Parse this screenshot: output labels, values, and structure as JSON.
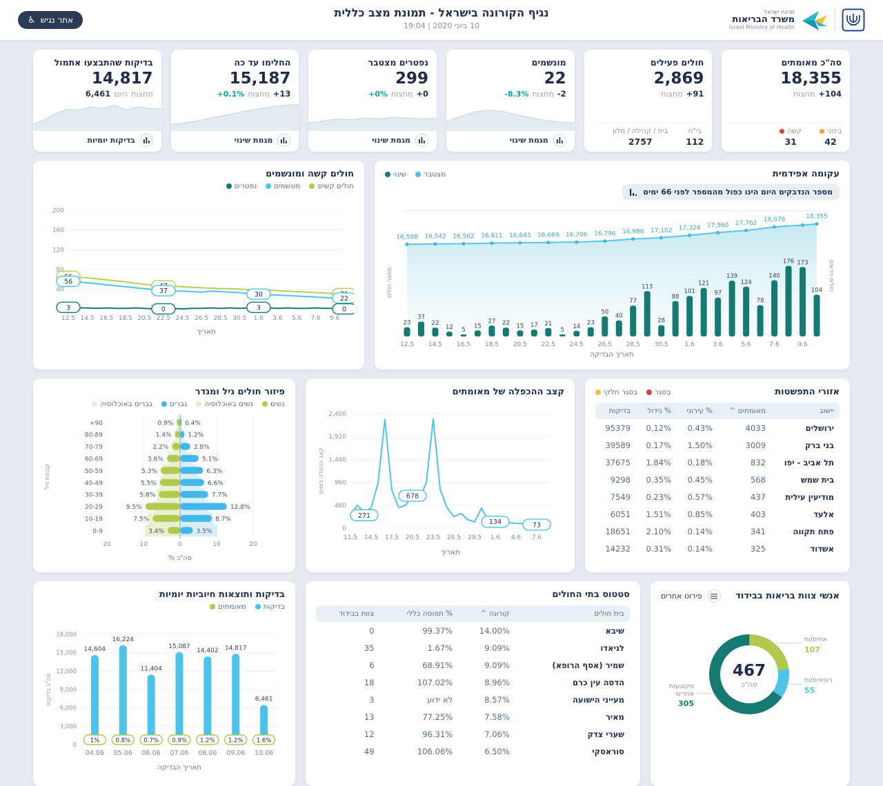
{
  "header": {
    "title": "נגיף הקורונה בישראל - תמונת מצב כללית",
    "datetime": "10 ביוני 2020 | 19:04",
    "accessibility_label": "אתר נגיש",
    "logo": {
      "heb1": "מדינת ישראל",
      "heb2": "משרד הבריאות",
      "eng": "Israel Ministry of Health"
    }
  },
  "colors": {
    "teal_dark": "#177a72",
    "light_blue": "#4ec3ea",
    "green": "#b0c94e",
    "pale_green": "#e7efc8",
    "pale_blue": "#d4ecf8",
    "red": "#e23c3c",
    "orange": "#f0a53e",
    "yellow": "#f0c04a",
    "accent_text": "#0fa3a0"
  },
  "kpis": [
    {
      "title": "סה\"כ מאומתים",
      "value": "18,355",
      "change_line": [
        {
          "t": "מחצות",
          "c": "lbl"
        },
        {
          "t": "+104",
          "c": "num"
        }
      ],
      "footer_stats": [
        {
          "label": "קשה",
          "value": "31",
          "dot": "#e23c3c"
        },
        {
          "label": "בינוני",
          "value": "42",
          "dot": "#f0a53e"
        }
      ]
    },
    {
      "title": "חולים פעילים",
      "value": "2,869",
      "change_line": [
        {
          "t": "מחצות",
          "c": "lbl"
        },
        {
          "t": "+91",
          "c": "num"
        }
      ],
      "footer_stats": [
        {
          "label": "בית / קהילה / מלון",
          "value": "2757"
        },
        {
          "label": "בי\"ח",
          "value": "112"
        }
      ]
    },
    {
      "title": "מונשמים",
      "value": "22",
      "change_line": [
        {
          "t": "-8.3%",
          "c": "pct"
        },
        {
          "t": "מחצות",
          "c": "lbl"
        },
        {
          "t": "-2",
          "c": "num"
        }
      ],
      "button": "מגמת שינוי",
      "spark": [
        12,
        18,
        24,
        26,
        24,
        20,
        16,
        13,
        11,
        10
      ]
    },
    {
      "title": "נפטרים מצטבר",
      "value": "299",
      "change_line": [
        {
          "t": "+0%",
          "c": "pct"
        },
        {
          "t": "מחצות",
          "c": "lbl"
        },
        {
          "t": "+0",
          "c": "num"
        }
      ],
      "button": "מגמת שינוי",
      "spark": [
        10,
        12,
        15,
        14,
        16,
        15,
        17,
        16,
        15,
        16
      ]
    },
    {
      "title": "החלימו עד כה",
      "value": "15,187",
      "change_line": [
        {
          "t": "+0.1%",
          "c": "pct"
        },
        {
          "t": "מחצות",
          "c": "lbl"
        },
        {
          "t": "+13",
          "c": "num"
        }
      ],
      "button": "מגמת שינוי",
      "spark": [
        8,
        10,
        13,
        17,
        20,
        24,
        27,
        30,
        32,
        33
      ]
    },
    {
      "title": "בדיקות שהתבצעו אתמול",
      "value": "14,817",
      "change_line": [
        {
          "t": "6,461",
          "c": "num"
        },
        {
          "t": "היום",
          "c": "lbl"
        },
        {
          "t": "מחצות",
          "c": "lbl"
        }
      ],
      "button": "בדיקות יומיות",
      "spark": [
        8,
        14,
        22,
        27,
        26,
        30,
        28,
        32,
        26,
        30,
        28,
        27
      ]
    }
  ],
  "epi": {
    "title": "עקומה אפידמית",
    "note": "מספר הנדבקים היום הינו כפול מהמספר לפני 66 ימים",
    "legend": [
      {
        "label": "שינוי",
        "color": "#177a72"
      },
      {
        "label": "מצטבר",
        "color": "#4ec3ea"
      }
    ],
    "ylabel_right": "חולים חדשים",
    "ylabel_left": "מספר חולים",
    "xlabel": "תאריך הבדיקה",
    "x_ticks": [
      "12.5",
      "14.5",
      "16.5",
      "18.5",
      "20.5",
      "22.5",
      "24.5",
      "26.5",
      "28.5",
      "30.5",
      "1.6",
      "3.6",
      "5.6",
      "7.6",
      "9.6"
    ],
    "bars": [
      23,
      37,
      22,
      12,
      5,
      15,
      27,
      22,
      15,
      17,
      21,
      5,
      14,
      23,
      50,
      40,
      77,
      113,
      28,
      88,
      101,
      121,
      97,
      139,
      124,
      78,
      140,
      176,
      173,
      104
    ],
    "cumulative": [
      16508,
      16525,
      16542,
      16552,
      16562,
      16586,
      16611,
      16627,
      16643,
      16656,
      16669,
      16687,
      16706,
      16751,
      16796,
      16891,
      16986,
      17044,
      17102,
      17213,
      17324,
      17442,
      17560,
      17661,
      17762,
      17920,
      18078,
      18160,
      18240,
      18355
    ],
    "cum_labels": [
      "16,508",
      "16,542",
      "16,562",
      "16,611",
      "16,643",
      "16,669",
      "16,706",
      "16,796",
      "16,986",
      "17,102",
      "17,324",
      "17,560",
      "17,762",
      "18,078",
      "18,355"
    ]
  },
  "severe": {
    "title": "חולים קשה ומונשמים",
    "legend": [
      {
        "label": "נפטרים",
        "color": "#177a72"
      },
      {
        "label": "מונשמים",
        "color": "#4ec3ea"
      },
      {
        "label": "חולים קשים",
        "color": "#b0c94e"
      }
    ],
    "xlabel": "תאריך",
    "x_ticks": [
      "12.5",
      "14.5",
      "16.5",
      "18.5",
      "20.5",
      "22.5",
      "24.5",
      "26.5",
      "28.5",
      "30.5",
      "1.6",
      "3.6",
      "5.6",
      "7.6",
      "9.6"
    ],
    "y_ticks": [
      40,
      80,
      120,
      160,
      200
    ],
    "severe_patients": [
      66,
      64,
      63,
      61,
      59,
      57,
      55,
      52,
      50,
      48,
      47,
      46,
      45,
      44,
      43,
      42,
      41,
      41,
      40,
      39,
      38,
      38,
      37,
      36,
      35,
      34,
      33,
      32,
      31,
      31
    ],
    "ventilated": [
      56,
      55,
      53,
      51,
      49,
      47,
      45,
      43,
      41,
      39,
      37,
      36,
      36,
      35,
      34,
      36,
      35,
      34,
      33,
      31,
      30,
      29,
      28,
      27,
      26,
      25,
      24,
      23,
      22,
      22
    ],
    "deaths": [
      3,
      2,
      2,
      1,
      2,
      1,
      1,
      2,
      1,
      0,
      0,
      1,
      0,
      1,
      1,
      2,
      1,
      2,
      1,
      2,
      3,
      2,
      1,
      2,
      1,
      1,
      2,
      1,
      1,
      0
    ],
    "callouts": [
      {
        "series": "severe_patients",
        "i": 0,
        "t": "66"
      },
      {
        "series": "severe_patients",
        "i": 10,
        "t": "47"
      },
      {
        "series": "severe_patients",
        "i": 29,
        "t": "31"
      },
      {
        "series": "ventilated",
        "i": 0,
        "t": "56"
      },
      {
        "series": "ventilated",
        "i": 10,
        "t": "37"
      },
      {
        "series": "ventilated",
        "i": 20,
        "t": "30"
      },
      {
        "series": "ventilated",
        "i": 29,
        "t": "22"
      },
      {
        "series": "deaths",
        "i": 0,
        "t": "3"
      },
      {
        "series": "deaths",
        "i": 10,
        "t": "0"
      },
      {
        "series": "deaths",
        "i": 20,
        "t": "3"
      },
      {
        "series": "deaths",
        "i": 29,
        "t": "0"
      }
    ]
  },
  "pyramid": {
    "title": "פיזור חולים גיל ומגדר",
    "legend": [
      {
        "label": "גברים באוכלוסיה",
        "color": "#d4ecf8"
      },
      {
        "label": "גברים",
        "color": "#45b6e8"
      },
      {
        "label": "נשים באוכלוסיה",
        "color": "#e7efc8"
      },
      {
        "label": "נשים",
        "color": "#b0c94e"
      }
    ],
    "ylabel": "קבוצת גיל",
    "xlabel": "% סה\"כ",
    "x_ticks": [
      "20",
      "10",
      "0",
      "10",
      "20"
    ],
    "age_groups": [
      "+90",
      "80-89",
      "70-79",
      "60-69",
      "50-59",
      "40-49",
      "30-39",
      "20-29",
      "10-19",
      "0-9"
    ],
    "women": [
      0.9,
      1.4,
      2.2,
      3.6,
      5.3,
      5.5,
      5.8,
      9.5,
      7.5,
      3.4
    ],
    "men": [
      0.4,
      1.2,
      2.8,
      5.1,
      6.3,
      6.6,
      7.7,
      12.8,
      8.7,
      3.5
    ],
    "women_pop": [
      0.7,
      1.3,
      2.2,
      3.4,
      4.7,
      5.5,
      6.3,
      7.2,
      8.6,
      9.6
    ],
    "men_pop": [
      0.4,
      1.0,
      1.9,
      3.2,
      4.6,
      5.6,
      6.7,
      7.7,
      9.0,
      10.2
    ],
    "women_labels": [
      "0.9%",
      "1.4%",
      "2.2%",
      "3.6%",
      "5.3%",
      "5.5%",
      "5.8%",
      "9.5%",
      "7.5%",
      "3.4%"
    ],
    "men_labels": [
      "0.4%",
      "1.2%",
      "2.8%",
      "5.1%",
      "6.3%",
      "6.6%",
      "7.7%",
      "12.8%",
      "8.7%",
      "3.5%"
    ]
  },
  "doubling": {
    "title": "קצב ההכפלה של מאומתים",
    "ylabel": "קצב הכפלה בימים",
    "xlabel": "תאריך",
    "y_ticks": [
      "0",
      "480",
      "960",
      "1,440",
      "1,920",
      "2,400"
    ],
    "x_ticks": [
      "11.5",
      "14.5",
      "17.5",
      "20.5",
      "23.5",
      "26.5",
      "29.5",
      "1.6",
      "4.6",
      "7.6"
    ],
    "values": [
      271,
      480,
      330,
      430,
      950,
      2280,
      800,
      430,
      480,
      678,
      620,
      950,
      2290,
      820,
      430,
      240,
      310,
      180,
      130,
      420,
      150,
      134,
      120,
      110,
      100,
      95,
      90,
      155,
      110,
      73
    ],
    "callouts": [
      {
        "i": 0,
        "t": "271"
      },
      {
        "i": 9,
        "t": "678"
      },
      {
        "i": 21,
        "t": "134"
      },
      {
        "i": 29,
        "t": "73"
      }
    ]
  },
  "spread": {
    "title": "אזורי התפשטות",
    "legend": [
      {
        "label": "בסגר חלקי",
        "color": "#f0c04a"
      },
      {
        "label": "בסגר",
        "color": "#e23c3c"
      }
    ],
    "columns": [
      "יישוב",
      "מאומתים ^",
      "% עירוני",
      "% גידול",
      "בדיקות"
    ],
    "rows": [
      [
        "ירושלים",
        "4033",
        "0.43%",
        "0.12%",
        "95379"
      ],
      [
        "בני ברק",
        "3009",
        "1.50%",
        "0.17%",
        "39589"
      ],
      [
        "תל אביב - יפו",
        "832",
        "0.18%",
        "1.84%",
        "37675"
      ],
      [
        "בית שמש",
        "568",
        "0.45%",
        "0.35%",
        "9298"
      ],
      [
        "מודיעין עילית",
        "437",
        "0.57%",
        "0.23%",
        "7549"
      ],
      [
        "אלעד",
        "403",
        "0.85%",
        "1.51%",
        "6051"
      ],
      [
        "פתח תקווה",
        "341",
        "0.14%",
        "2.10%",
        "18651"
      ],
      [
        "אשדוד",
        "325",
        "0.14%",
        "0.31%",
        "14232"
      ]
    ]
  },
  "tests": {
    "title": "בדיקות ותוצאות חיוביות יומיות",
    "legend": [
      {
        "label": "מאומתים",
        "color": "#b0c94e"
      },
      {
        "label": "בדיקות",
        "color": "#4ec3ea"
      }
    ],
    "ylabel": "סה\"כ בדיקות",
    "xlabel": "תאריך הבדיקה",
    "y_ticks": [
      "0",
      "3,000",
      "6,000",
      "9,000",
      "12,000",
      "15,000",
      "18,000"
    ],
    "categories": [
      "04.06",
      "05.06",
      "06.06",
      "07.06",
      "08.06",
      "09.06",
      "10.06"
    ],
    "values": [
      14604,
      16224,
      11404,
      15087,
      14402,
      14817,
      6461
    ],
    "value_labels": [
      "14,604",
      "16,224",
      "11,404",
      "15,087",
      "14,402",
      "14,817",
      "6,461"
    ],
    "pct_labels": [
      "1%",
      "0.8%",
      "0.7%",
      "0.9%",
      "1.2%",
      "1.2%",
      "1.6%"
    ]
  },
  "hospitals": {
    "title": "סטטוס בתי החולים",
    "columns": [
      "בית חולים",
      "קורונה ^",
      "% תפוסה כללי",
      "צוות בבידוד"
    ],
    "rows": [
      [
        "שיבא",
        "14.00%",
        "99.37%",
        "0"
      ],
      [
        "לניאדו",
        "9.09%",
        "1.67%",
        "35"
      ],
      [
        "שמיר (אסף הרופא)",
        "9.09%",
        "68.91%",
        "6"
      ],
      [
        "הדסה עין כרם",
        "8.96%",
        "107.02%",
        "18"
      ],
      [
        "מעייני הישועה",
        "8.57%",
        "לא ידוע",
        "3"
      ],
      [
        "מאיר",
        "7.58%",
        "77.25%",
        "13"
      ],
      [
        "שערי צדק",
        "7.06%",
        "96.31%",
        "12"
      ],
      [
        "סוראסקי",
        "6.50%",
        "106.06%",
        "49"
      ]
    ]
  },
  "staff": {
    "title": "אנשי צוות בריאות בבידוד",
    "button": "פירוט אחרים",
    "total": "467",
    "total_label": "סה\"כ",
    "segments": [
      {
        "label": "אחים/ות",
        "value": 107,
        "color": "#b0c94e"
      },
      {
        "label": "רופאים/ות",
        "value": 55,
        "color": "#4ec3ea"
      },
      {
        "label": "מקצועות אחרים",
        "value": 305,
        "color": "#177a72"
      }
    ]
  }
}
